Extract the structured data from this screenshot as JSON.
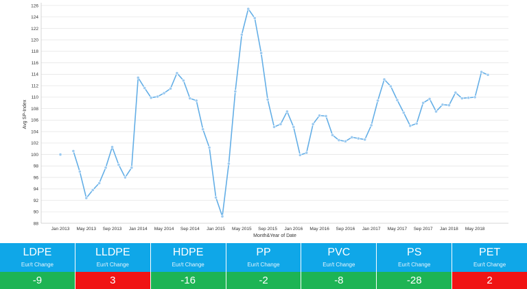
{
  "colors": {
    "line": "#63aee6",
    "marker": "#9ccaf0",
    "grid": "#e6e6e6",
    "tile_header": "#0fa7e8",
    "positive": "#f01414",
    "negative": "#1db454"
  },
  "chart_data": {
    "type": "line",
    "xlabel": "Month&Year of Date",
    "ylabel": "Avg SP-Index",
    "ylim": [
      88,
      126
    ],
    "yticks": [
      88,
      90,
      92,
      94,
      96,
      98,
      100,
      102,
      104,
      106,
      108,
      110,
      112,
      114,
      116,
      118,
      120,
      122,
      124,
      126
    ],
    "grid": true,
    "x_tick_labels": [
      "Jan 2013",
      "May 2013",
      "Sep 2013",
      "Jan 2014",
      "May 2014",
      "Sep 2014",
      "Jan 2015",
      "May 2015",
      "Sep 2015",
      "Jan 2016",
      "May 2016",
      "Sep 2016",
      "Jan 2017",
      "May 2017",
      "Sep 2017",
      "Jan 2018",
      "May 2018"
    ],
    "x": [
      "Jan 2013",
      "Feb 2013",
      "Mar 2013",
      "Apr 2013",
      "May 2013",
      "Jun 2013",
      "Jul 2013",
      "Aug 2013",
      "Sep 2013",
      "Oct 2013",
      "Nov 2013",
      "Dec 2013",
      "Jan 2014",
      "Feb 2014",
      "Mar 2014",
      "Apr 2014",
      "May 2014",
      "Jun 2014",
      "Jul 2014",
      "Aug 2014",
      "Sep 2014",
      "Oct 2014",
      "Nov 2014",
      "Dec 2014",
      "Jan 2015",
      "Feb 2015",
      "Mar 2015",
      "Apr 2015",
      "May 2015",
      "Jun 2015",
      "Jul 2015",
      "Aug 2015",
      "Sep 2015",
      "Oct 2015",
      "Nov 2015",
      "Dec 2015",
      "Jan 2016",
      "Feb 2016",
      "Mar 2016",
      "Apr 2016",
      "May 2016",
      "Jun 2016",
      "Jul 2016",
      "Aug 2016",
      "Sep 2016",
      "Oct 2016",
      "Nov 2016",
      "Dec 2016",
      "Jan 2017",
      "Feb 2017",
      "Mar 2017",
      "Apr 2017",
      "May 2017",
      "Jun 2017",
      "Jul 2017",
      "Aug 2017",
      "Sep 2017",
      "Oct 2017",
      "Nov 2017",
      "Dec 2017",
      "Jan 2018",
      "Feb 2018",
      "Mar 2018",
      "Apr 2018",
      "May 2018",
      "Jun 2018",
      "Jul 2018"
    ],
    "series": [
      {
        "values": [
          100.0,
          null,
          100.6,
          97.0,
          92.4,
          93.8,
          95.0,
          97.7,
          101.3,
          98.2,
          96.0,
          97.7,
          113.4,
          111.6,
          109.9,
          110.1,
          110.7,
          111.5,
          114.2,
          112.9,
          109.8,
          109.4,
          104.4,
          101.2,
          92.5,
          89.2,
          98.4,
          111.0,
          120.9,
          125.4,
          123.8,
          117.7,
          109.6,
          104.8,
          105.3,
          107.5,
          104.8,
          99.9,
          100.3,
          105.3,
          106.8,
          106.7,
          103.4,
          102.5,
          102.3,
          103.0,
          102.8,
          102.6,
          105.1,
          109.4,
          113.1,
          111.9,
          109.5,
          107.3,
          105.0,
          105.4,
          109.0,
          109.7,
          107.5,
          108.7,
          108.6,
          110.8,
          109.8,
          109.9,
          110.0,
          114.4,
          113.9
        ]
      }
    ]
  },
  "tiles": [
    {
      "name": "LDPE",
      "sub": "Eur/t Change",
      "value": "-9",
      "status": "negative"
    },
    {
      "name": "LLDPE",
      "sub": "Eur/t Change",
      "value": "3",
      "status": "positive"
    },
    {
      "name": "HDPE",
      "sub": "Eur/t Change",
      "value": "-16",
      "status": "negative"
    },
    {
      "name": "PP",
      "sub": "Eur/t Change",
      "value": "-2",
      "status": "negative"
    },
    {
      "name": "PVC",
      "sub": "Eur/t Change",
      "value": "-8",
      "status": "negative"
    },
    {
      "name": "PS",
      "sub": "Eur/t Change",
      "value": "-28",
      "status": "negative"
    },
    {
      "name": "PET",
      "sub": "Eur/t Change",
      "value": "2",
      "status": "positive"
    }
  ]
}
